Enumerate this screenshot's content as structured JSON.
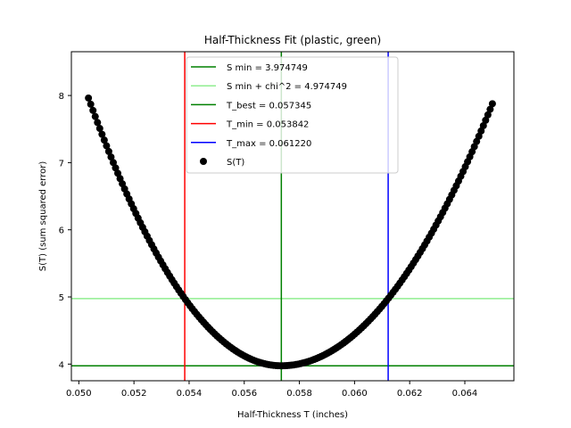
{
  "chart_data": {
    "type": "scatter",
    "title": "Half-Thickness Fit (plastic, green)",
    "xlabel": "Half-Thickness T (inches)",
    "ylabel": "S(T) (sum squared error)",
    "xlim": [
      0.04973,
      0.06578
    ],
    "ylim": [
      3.752,
      8.652
    ],
    "xticks": [
      0.05,
      0.052,
      0.054,
      0.056,
      0.058,
      0.06,
      0.062,
      0.064
    ],
    "xtick_labels": [
      "0.050",
      "0.052",
      "0.054",
      "0.056",
      "0.058",
      "0.060",
      "0.062",
      "0.064"
    ],
    "yticks": [
      4,
      5,
      6,
      7,
      8
    ],
    "ytick_labels": [
      "4",
      "5",
      "6",
      "7",
      "8"
    ],
    "grid": false,
    "legend_position": "top-center",
    "series": [
      {
        "name": "S(T)",
        "kind": "scatter",
        "color": "#000000",
        "x_range": [
          0.05035,
          0.065
        ],
        "n_points": 180,
        "model": {
          "S_min": 3.974749,
          "T_best": 0.057345,
          "T_min": 0.053842,
          "T_max": 0.06122
        }
      }
    ],
    "hlines": [
      {
        "name": "S min = 3.974749",
        "y": 3.974749,
        "color": "#008000"
      },
      {
        "name": "S min + chi^2 = 4.974749",
        "y": 4.974749,
        "color": "#90ee90"
      }
    ],
    "vlines": [
      {
        "name": "T_best = 0.057345",
        "x": 0.057345,
        "color": "#008000"
      },
      {
        "name": "T_min = 0.053842",
        "x": 0.053842,
        "color": "#ff0000"
      },
      {
        "name": "T_max = 0.061220",
        "x": 0.06122,
        "color": "#0000ff"
      }
    ],
    "legend": [
      {
        "label": "S min = 3.974749",
        "type": "line",
        "color": "#008000"
      },
      {
        "label": "S min + chi^2 = 4.974749",
        "type": "line",
        "color": "#90ee90"
      },
      {
        "label": "T_best = 0.057345",
        "type": "line",
        "color": "#008000"
      },
      {
        "label": "T_min = 0.053842",
        "type": "line",
        "color": "#ff0000"
      },
      {
        "label": "T_max = 0.061220",
        "type": "line",
        "color": "#0000ff"
      },
      {
        "label": "S(T)",
        "type": "marker",
        "color": "#000000"
      }
    ]
  }
}
